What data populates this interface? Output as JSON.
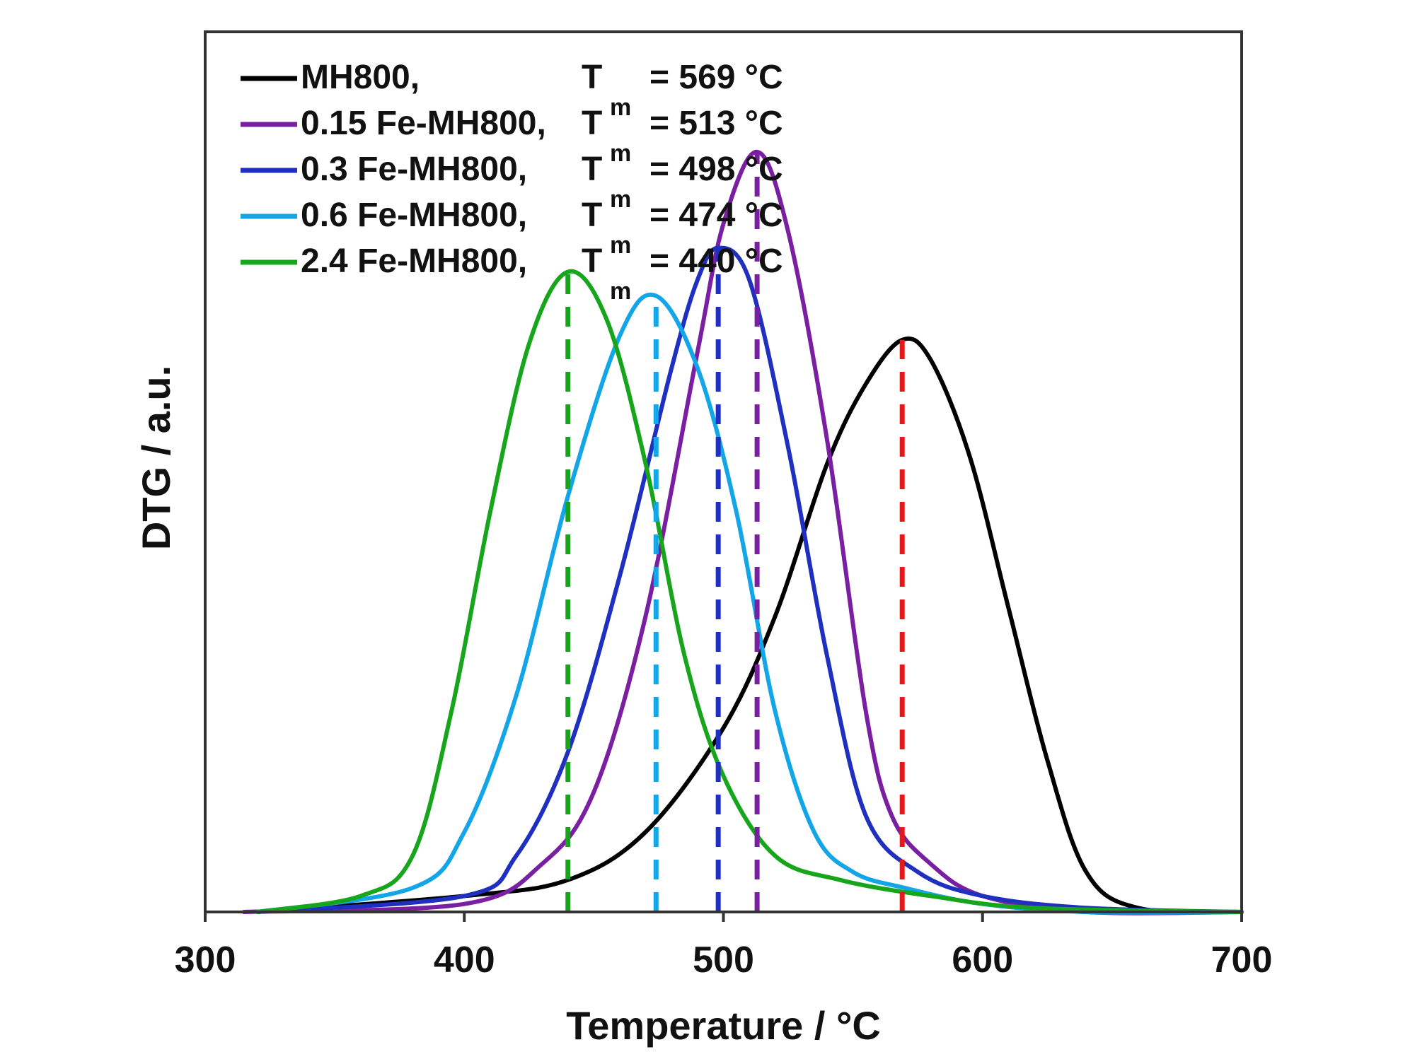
{
  "chart_data": {
    "type": "line",
    "title": "",
    "xlabel": "Temperature / °C",
    "ylabel": "DTG / a.u.",
    "xlim": [
      300,
      700
    ],
    "ylim": [
      0,
      1.1
    ],
    "xticks": [
      300,
      400,
      500,
      600,
      700
    ],
    "yticks": [],
    "grid": false,
    "legend_position": "top-left",
    "marker_color": "#e31a1c",
    "series": [
      {
        "name": "MH800,",
        "tm_label": "T",
        "tm_sub": "m",
        "tm_value": "= 569 °C",
        "tm": 569,
        "color": "#000000",
        "marker_color": "#e31a1c",
        "x": [
          320,
          400,
          440,
          470,
          500,
          520,
          540,
          555,
          569,
          580,
          595,
          610,
          625,
          640,
          660,
          700
        ],
        "y": [
          0.0,
          0.02,
          0.04,
          0.1,
          0.23,
          0.37,
          0.56,
          0.66,
          0.715,
          0.69,
          0.57,
          0.38,
          0.19,
          0.05,
          0.005,
          0.0
        ]
      },
      {
        "name": "0.15 Fe-MH800,",
        "tm_label": "T",
        "tm_sub": "m",
        "tm_value": "= 513 °C",
        "tm": 513,
        "color": "#7a1fa2",
        "marker_color": "#7a1fa2",
        "x": [
          315,
          400,
          430,
          450,
          470,
          490,
          500,
          513,
          525,
          540,
          555,
          565,
          580,
          600,
          640,
          700
        ],
        "y": [
          0.0,
          0.01,
          0.06,
          0.15,
          0.37,
          0.7,
          0.86,
          0.95,
          0.85,
          0.59,
          0.25,
          0.12,
          0.06,
          0.02,
          0.0,
          0.0
        ]
      },
      {
        "name": "0.3 Fe-MH800,",
        "tm_label": "T",
        "tm_sub": "m",
        "tm_value": "= 498 °C",
        "tm": 498,
        "color": "#1f2fbf",
        "marker_color": "#1f2fbf",
        "x": [
          320,
          400,
          420,
          440,
          460,
          480,
          490,
          498,
          510,
          525,
          540,
          555,
          575,
          600,
          640,
          700
        ],
        "y": [
          0.0,
          0.02,
          0.07,
          0.2,
          0.42,
          0.68,
          0.79,
          0.83,
          0.79,
          0.58,
          0.32,
          0.12,
          0.05,
          0.02,
          0.005,
          0.0
        ]
      },
      {
        "name": "0.6 Fe-MH800,",
        "tm_label": "T",
        "tm_sub": "m",
        "tm_value": "= 474 °C",
        "tm": 474,
        "color": "#12a6e8",
        "marker_color": "#12a6e8",
        "x": [
          320,
          380,
          400,
          420,
          440,
          460,
          474,
          490,
          505,
          520,
          535,
          550,
          570,
          600,
          640,
          700
        ],
        "y": [
          0.0,
          0.03,
          0.1,
          0.27,
          0.52,
          0.72,
          0.77,
          0.68,
          0.5,
          0.25,
          0.1,
          0.05,
          0.03,
          0.01,
          0.0,
          0.0
        ]
      },
      {
        "name": "2.4 Fe-MH800,",
        "tm_label": "T",
        "tm_sub": "m",
        "tm_value": "= 440 °C",
        "tm": 440,
        "color": "#17a51c",
        "marker_color": "#17a51c",
        "x": [
          320,
          360,
          380,
          395,
          410,
          425,
          440,
          455,
          470,
          485,
          500,
          520,
          545,
          580,
          620,
          700
        ],
        "y": [
          0.0,
          0.02,
          0.07,
          0.25,
          0.5,
          0.71,
          0.8,
          0.74,
          0.56,
          0.32,
          0.17,
          0.07,
          0.04,
          0.02,
          0.005,
          0.0
        ]
      }
    ]
  }
}
